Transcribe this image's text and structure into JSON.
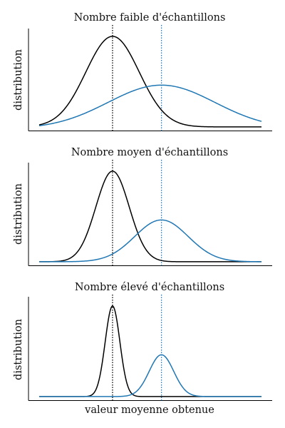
{
  "figure": {
    "xlabel": "valeur moyenne obtenue"
  },
  "chart_data": [
    {
      "type": "line",
      "title": "Nombre faible d'échantillons",
      "xlabel": "",
      "ylabel": "distribution",
      "xlim": [
        0,
        10
      ],
      "ylim": [
        0,
        1.05
      ],
      "x_ticks_shown": false,
      "y_ticks_shown": false,
      "grid": false,
      "series": [
        {
          "color": "#000000",
          "curve": "gaussian",
          "mean": 3.3,
          "sd": 1.2,
          "peak": 0.95,
          "baseline": 0.04
        },
        {
          "color": "#1f77b4",
          "curve": "gaussian",
          "mean": 5.5,
          "sd": 2.4,
          "peak": 0.46,
          "baseline": 0.02
        }
      ],
      "vlines": [
        {
          "x": 3.3,
          "color": "#000000",
          "style": "dotted"
        },
        {
          "x": 5.5,
          "color": "#1f77b4",
          "style": "dotted"
        }
      ]
    },
    {
      "type": "line",
      "title": "Nombre moyen d'échantillons",
      "xlabel": "",
      "ylabel": "distribution",
      "xlim": [
        0,
        10
      ],
      "ylim": [
        0,
        1.05
      ],
      "x_ticks_shown": false,
      "y_ticks_shown": false,
      "grid": false,
      "series": [
        {
          "color": "#000000",
          "curve": "gaussian",
          "mean": 3.3,
          "sd": 0.75,
          "peak": 0.95,
          "baseline": 0.04
        },
        {
          "color": "#1f77b4",
          "curve": "gaussian",
          "mean": 5.5,
          "sd": 1.2,
          "peak": 0.46,
          "baseline": 0.04
        }
      ],
      "vlines": [
        {
          "x": 3.3,
          "color": "#000000",
          "style": "dotted"
        },
        {
          "x": 5.5,
          "color": "#1f77b4",
          "style": "dotted"
        }
      ]
    },
    {
      "type": "line",
      "title": "Nombre élevé d'échantillons",
      "xlabel": "valeur moyenne obtenue",
      "ylabel": "distribution",
      "xlim": [
        0,
        10
      ],
      "ylim": [
        0,
        1.05
      ],
      "x_ticks_shown": false,
      "y_ticks_shown": false,
      "grid": false,
      "series": [
        {
          "color": "#000000",
          "curve": "gaussian",
          "mean": 3.3,
          "sd": 0.33,
          "peak": 0.95,
          "baseline": 0.04
        },
        {
          "color": "#1f77b4",
          "curve": "gaussian",
          "mean": 5.5,
          "sd": 0.55,
          "peak": 0.46,
          "baseline": 0.04
        }
      ],
      "vlines": [
        {
          "x": 3.3,
          "color": "#000000",
          "style": "dotted"
        },
        {
          "x": 5.5,
          "color": "#1f77b4",
          "style": "dotted"
        }
      ]
    }
  ]
}
